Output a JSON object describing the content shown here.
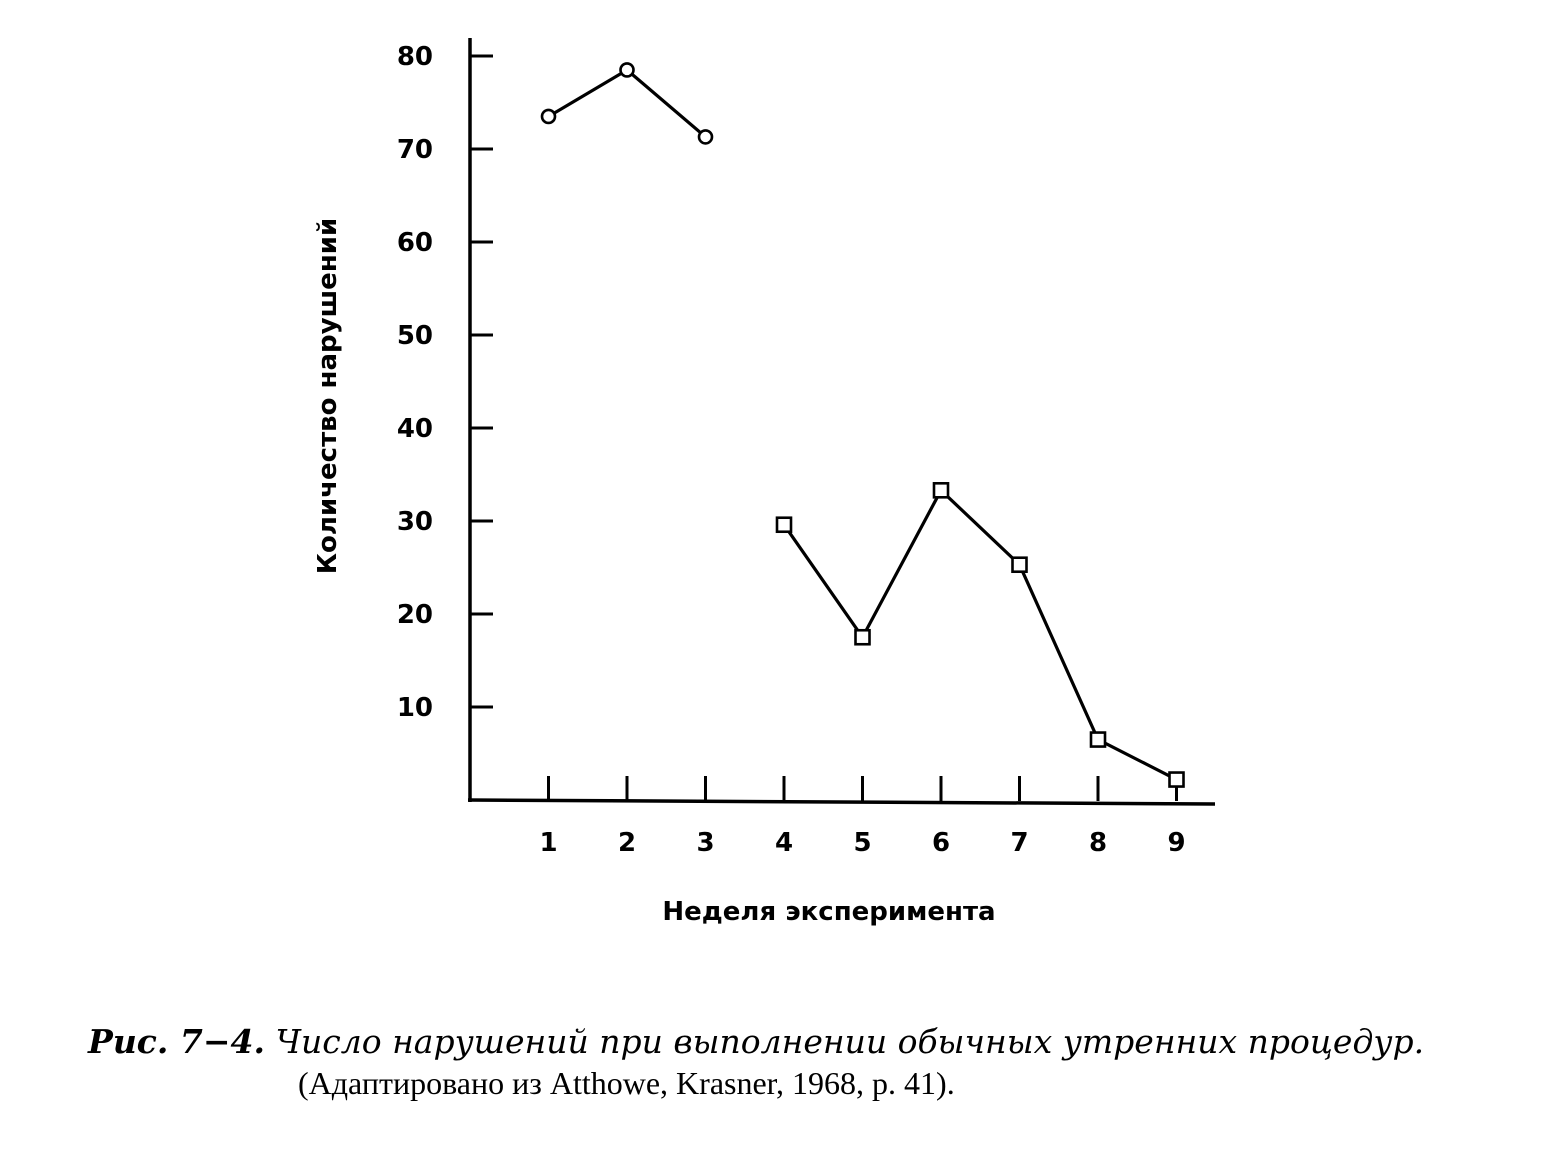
{
  "chart_data": {
    "type": "line",
    "xlabel": "Неделя эксперимента",
    "ylabel": "Количество нарушений",
    "x_ticks": [
      "1",
      "2",
      "3",
      "4",
      "5",
      "6",
      "7",
      "8",
      "9"
    ],
    "y_ticks": [
      "10",
      "20",
      "30",
      "40",
      "50",
      "60",
      "70",
      "80"
    ],
    "xlim": [
      0,
      9.8
    ],
    "ylim": [
      0,
      80
    ],
    "grid": false,
    "series": [
      {
        "marker": "circle",
        "x": [
          1,
          2,
          3
        ],
        "y": [
          73.5,
          78.5,
          71.3
        ]
      },
      {
        "marker": "square",
        "x": [
          4,
          5,
          6,
          7,
          8,
          9
        ],
        "y": [
          29.6,
          17.5,
          33.3,
          25.3,
          6.5,
          2.2
        ]
      }
    ]
  },
  "caption": {
    "prefix": "Рис. 7−4.",
    "text": "Число нарушений при выполнении обычных утренних процедур.",
    "source": "(Адаптировано из Atthowe, Krasner, 1968, p. 41)."
  }
}
